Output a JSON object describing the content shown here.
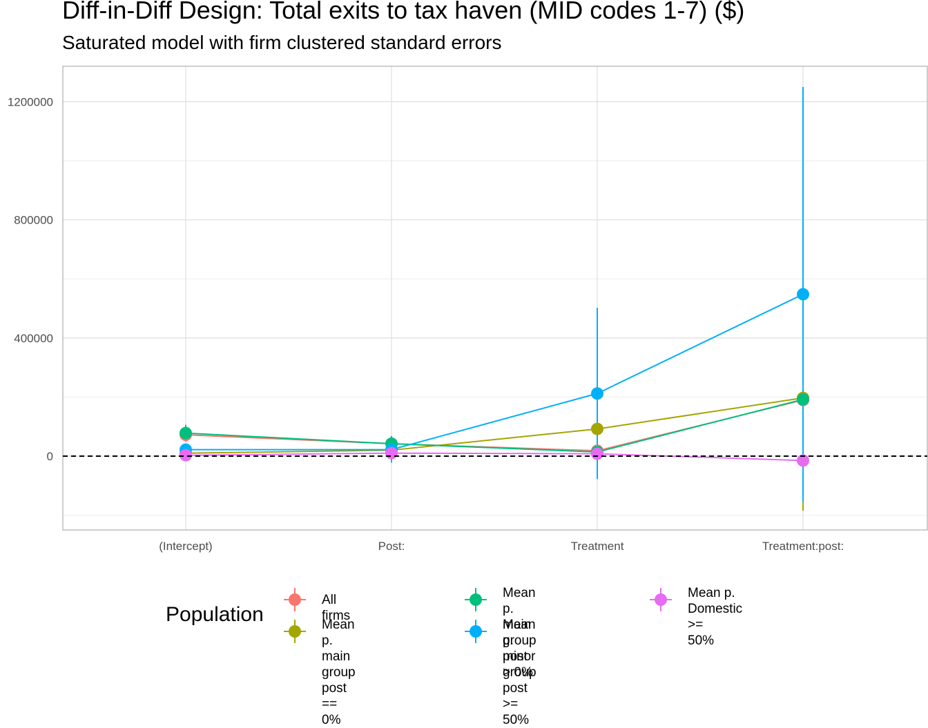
{
  "chart_data": {
    "type": "line",
    "title": "Diff-in-Diff Design: Total exits to tax haven (MID codes 1-7)  ($)",
    "subtitle": "Saturated model with firm clustered standard errors",
    "xlabel": "",
    "ylabel": "",
    "categories": [
      "(Intercept)",
      "Post:",
      "Treatment",
      "Treatment:post:"
    ],
    "yticks": [
      0,
      400000,
      800000,
      1200000
    ],
    "ylim": [
      -250000,
      1320000
    ],
    "grid": true,
    "reference_line": {
      "y": 0,
      "style": "dashed"
    },
    "legend": {
      "title": "Population",
      "position": "bottom"
    },
    "series": [
      {
        "name": "All firms",
        "color": "#F8766D",
        "values": [
          72000,
          42000,
          18000,
          190000
        ],
        "lower": [
          50000,
          20000,
          -10000,
          -150000
        ],
        "upper": [
          95000,
          65000,
          45000,
          530000
        ]
      },
      {
        "name": "Mean p. main group\npost == 0%",
        "color": "#A3A500",
        "values": [
          10000,
          20000,
          92000,
          197000
        ],
        "lower": [
          0,
          5000,
          30000,
          -185000
        ],
        "upper": [
          20000,
          35000,
          155000,
          580000
        ]
      },
      {
        "name": "Mean p. main group\npost > 0%",
        "color": "#00BF7D",
        "values": [
          78000,
          42000,
          14000,
          192000
        ],
        "lower": [
          50000,
          18000,
          -15000,
          -150000
        ],
        "upper": [
          106000,
          68000,
          43000,
          535000
        ]
      },
      {
        "name": "Mean p. minor group\npost >= 50%",
        "color": "#00B0F6",
        "values": [
          22000,
          22000,
          212000,
          548000
        ],
        "lower": [
          10000,
          -22000,
          -78000,
          -155000
        ],
        "upper": [
          34000,
          66000,
          502000,
          1250000
        ]
      },
      {
        "name": "Mean p. Domestic >=\n50%",
        "color": "#E76BF3",
        "values": [
          3000,
          10000,
          8000,
          -15000
        ],
        "lower": [
          -1000,
          4000,
          2000,
          -30000
        ],
        "upper": [
          7000,
          16000,
          14000,
          0
        ]
      }
    ]
  }
}
